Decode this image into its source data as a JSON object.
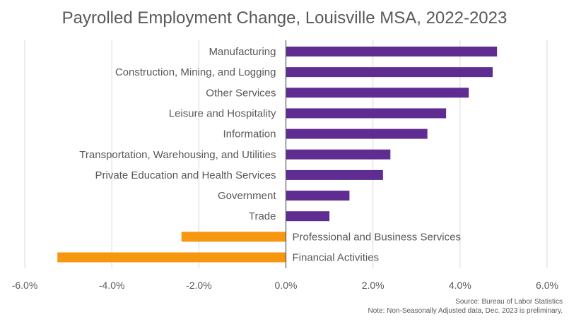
{
  "chart_data": {
    "type": "bar",
    "orientation": "horizontal",
    "title": "Payrolled Employment Change, Louisville MSA, 2022-2023",
    "categories": [
      "Manufacturing",
      "Construction, Mining, and Logging",
      "Other Services",
      "Leisure and Hospitality",
      "Information",
      "Transportation, Warehousing, and Utilities",
      "Private Education and Health Services",
      "Government",
      "Trade",
      "Professional and Business Services",
      "Financial Activities"
    ],
    "values": [
      4.85,
      4.75,
      4.2,
      3.68,
      3.25,
      2.4,
      2.23,
      1.46,
      1.0,
      -2.4,
      -5.25
    ],
    "unit": "%",
    "xlim": [
      -6,
      6
    ],
    "xticks": [
      "-6.0%",
      "-4.0%",
      "-2.0%",
      "0.0%",
      "2.0%",
      "4.0%",
      "6.0%"
    ],
    "xtick_values": [
      -6,
      -4,
      -2,
      0,
      2,
      4,
      6
    ],
    "grid": "vertical",
    "legend": "none",
    "colors": {
      "positive": "#5f2c91",
      "negative": "#f7960f",
      "grid": "#d9d9d9",
      "axis": "#595959"
    }
  },
  "footer": {
    "source": "Source: Bureau of Labor Statistics",
    "note": "Note: Non-Seasonally Adjusted data, Dec. 2023 is preliminary."
  }
}
